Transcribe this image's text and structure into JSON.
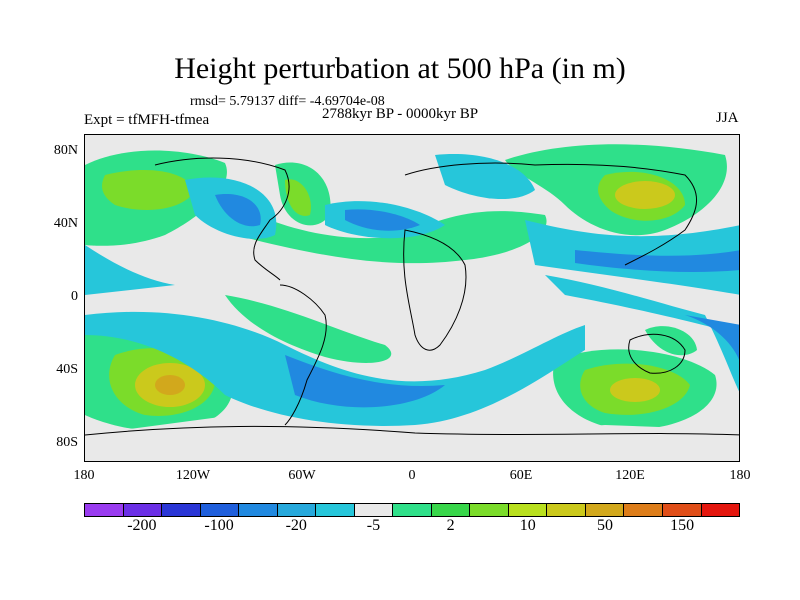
{
  "title": "Height perturbation at 500 hPa (in m)",
  "stats": "rmsd= 5.79137 diff= -4.69704e-08",
  "experiment": "Expt = tfMFH-tfmea",
  "period": "2788kyr BP - 0000kyr BP",
  "season": "JJA",
  "lat_labels": [
    "80N",
    "40N",
    "0",
    "40S",
    "80S"
  ],
  "lon_labels": [
    "180",
    "120W",
    "60W",
    "0",
    "60E",
    "120E",
    "180"
  ],
  "colorbar": {
    "labels": [
      "-200",
      "-100",
      "-20",
      "-5",
      "2",
      "10",
      "50",
      "150"
    ],
    "colors": [
      "#9a3cf0",
      "#6b2fe6",
      "#2a36d6",
      "#1f5fdc",
      "#2189e0",
      "#27a9dc",
      "#26c6da",
      "#e9e9e9",
      "#2fe08a",
      "#38d64a",
      "#7bdc2a",
      "#b9e01e",
      "#cbc91c",
      "#d2a81c",
      "#dd7d1a",
      "#e04e18",
      "#e4160e"
    ]
  }
}
